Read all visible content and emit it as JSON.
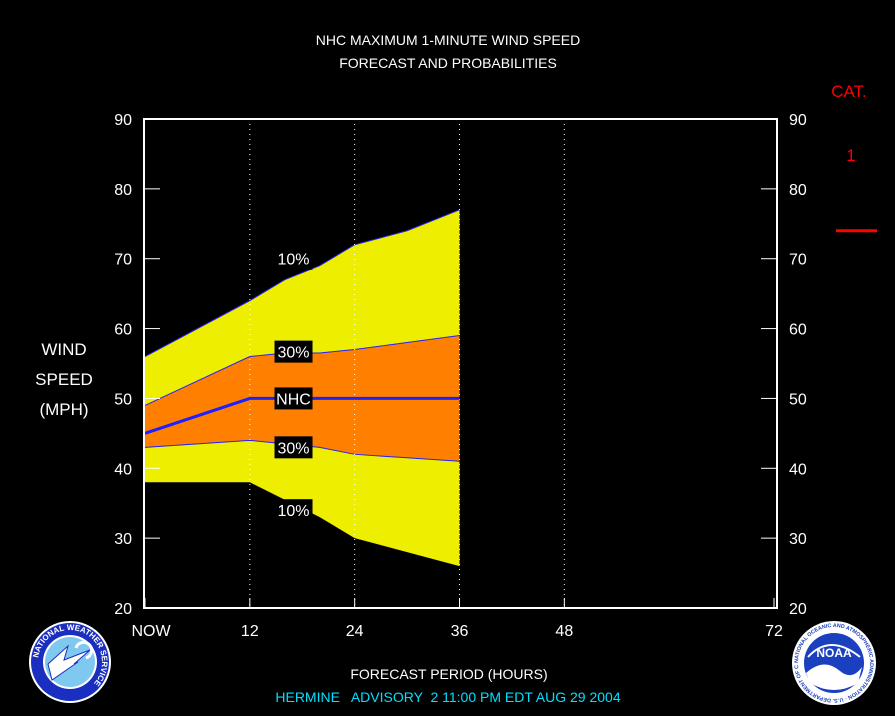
{
  "header": {
    "title_line1": "NHC MAXIMUM 1-MINUTE WIND SPEED",
    "title_line2": "FORECAST AND PROBABILITIES"
  },
  "footer": {
    "xlabel": "FORECAST PERIOD (HOURS)",
    "advisory": "HERMINE   ADVISORY  2 11:00 PM EDT AUG 29 2004"
  },
  "category": {
    "label": "CAT.",
    "value": "1",
    "threshold_mph": 74,
    "color": "#ff0000"
  },
  "colors": {
    "background": "#000000",
    "axes": "#ffffff",
    "grid": "#ffffff",
    "band_outer": "#eeee00",
    "band_inner": "#ff8000",
    "forecast_line": "#2020ff",
    "title_text": "#ffffff",
    "advisory_text": "#00e0ff"
  },
  "logos": {
    "nws_text": "NATIONAL WEATHER SERVICE",
    "noaa_text": "NOAA",
    "noaa_ring_text": "NATIONAL OCEANIC AND ATMOSPHERIC ADMINISTRATION · U.S. DEPARTMENT OF COMMERCE"
  },
  "chart_data": {
    "type": "area",
    "title": "NHC MAXIMUM 1-MINUTE WIND SPEED FORECAST AND PROBABILITIES",
    "xlabel": "FORECAST PERIOD (HOURS)",
    "ylabel_lines": [
      "WIND",
      "SPEED",
      "(MPH)"
    ],
    "xlim": [
      0,
      72
    ],
    "ylim": [
      20,
      90
    ],
    "x_ticks": [
      {
        "value": 0,
        "label": "NOW"
      },
      {
        "value": 12,
        "label": "12"
      },
      {
        "value": 24,
        "label": "24"
      },
      {
        "value": 36,
        "label": "36"
      },
      {
        "value": 48,
        "label": "48"
      },
      {
        "value": 72,
        "label": "72"
      }
    ],
    "y_ticks": [
      20,
      30,
      40,
      50,
      60,
      70,
      80,
      90
    ],
    "vertical_grid_hours": [
      12,
      24,
      36,
      48
    ],
    "grid": "dotted vertical",
    "x": [
      0,
      12,
      16,
      20,
      24,
      30,
      36
    ],
    "series": [
      {
        "name": "10%",
        "band": "upper_outer",
        "values": [
          56,
          64,
          67,
          69,
          72,
          74,
          77
        ]
      },
      {
        "name": "30%",
        "band": "upper_inner",
        "values": [
          49,
          56,
          56.5,
          56.5,
          57,
          58,
          59
        ]
      },
      {
        "name": "NHC",
        "band": "forecast",
        "values": [
          45,
          50,
          50,
          50,
          50,
          50,
          50
        ]
      },
      {
        "name": "30%",
        "band": "lower_inner",
        "values": [
          43,
          44,
          43.5,
          43,
          42,
          41.5,
          41
        ]
      },
      {
        "name": "10%",
        "band": "lower_outer",
        "values": [
          38,
          38,
          35.5,
          33,
          30,
          28,
          26
        ]
      }
    ],
    "band_labels": [
      {
        "text": "10%",
        "x": 17,
        "y": 70
      },
      {
        "text": "30%",
        "x": 17,
        "y": 56.7
      },
      {
        "text": "NHC",
        "x": 17,
        "y": 50
      },
      {
        "text": "30%",
        "x": 17,
        "y": 43
      },
      {
        "text": "10%",
        "x": 17,
        "y": 34
      }
    ]
  }
}
